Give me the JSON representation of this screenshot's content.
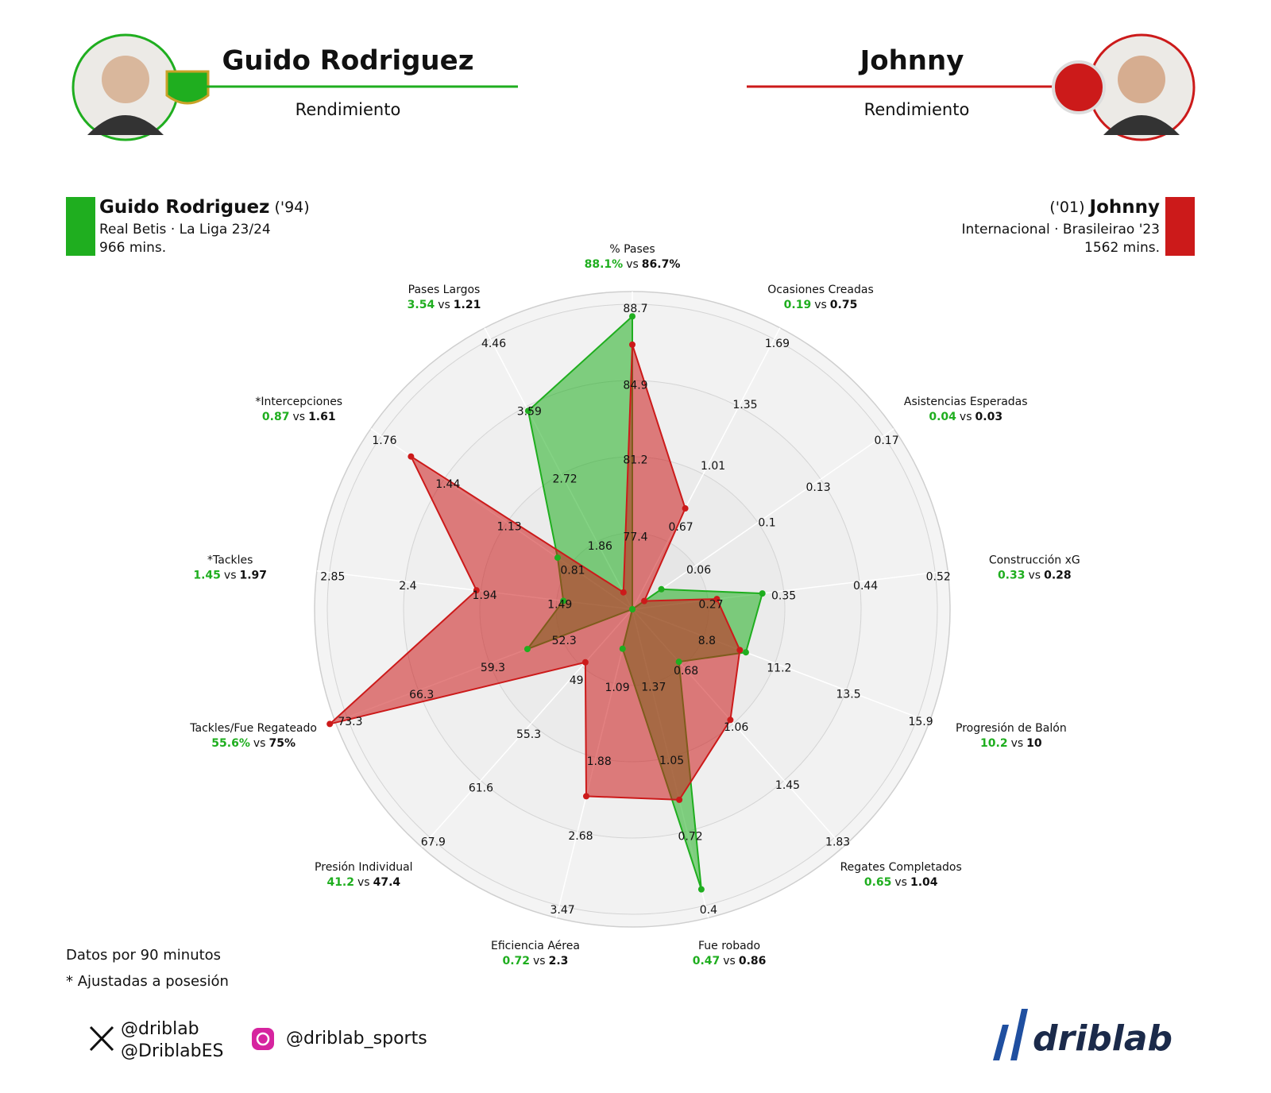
{
  "header": {
    "left": {
      "name": "Guido Rodriguez",
      "subtitle": "Rendimiento"
    },
    "right": {
      "name": "Johnny",
      "subtitle": "Rendimiento"
    }
  },
  "chart_data": {
    "type": "radar",
    "categories": [
      "% Pases",
      "Ocasiones Creadas",
      "Asistencias Esperadas",
      "Construcción xG",
      "Progresión de Balón",
      "Regates Completados",
      "Fue robado",
      "Eficiencia Aérea",
      "Presión Individual",
      "Tackles/Fue Regateado",
      "*Tackles",
      "*Intercepciones",
      "Pases Largos"
    ],
    "rlims": [
      [
        73.6,
        88.7
      ],
      [
        0.19,
        1.69
      ],
      [
        0.023,
        0.17
      ],
      [
        0.187,
        0.52
      ],
      [
        6.43,
        15.9
      ],
      [
        0.297,
        1.83
      ],
      [
        1.69,
        0.4
      ],
      [
        0.297,
        3.47
      ],
      [
        41.2,
        67.9
      ],
      [
        45.3,
        73.3
      ],
      [
        1.037,
        2.85
      ],
      [
        0.493,
        1.76
      ],
      [
        0.993,
        4.46
      ]
    ],
    "rticks": [
      [
        77.4,
        81.2,
        84.9,
        88.7
      ],
      [
        0.67,
        1.01,
        1.35,
        1.69
      ],
      [
        0.06,
        0.1,
        0.13,
        0.17
      ],
      [
        0.27,
        0.35,
        0.44,
        0.52
      ],
      [
        8.8,
        11.2,
        13.5,
        15.9
      ],
      [
        0.68,
        1.06,
        1.45,
        1.83
      ],
      [
        1.37,
        1.05,
        0.72,
        0.4
      ],
      [
        1.09,
        1.88,
        2.68,
        3.47
      ],
      [
        49,
        55.3,
        61.6,
        67.9
      ],
      [
        52.3,
        59.3,
        66.3,
        73.3
      ],
      [
        1.49,
        1.94,
        2.4,
        2.85
      ],
      [
        0.81,
        1.13,
        1.44,
        1.76
      ],
      [
        1.86,
        2.72,
        3.59,
        4.46
      ]
    ],
    "separator": "vs",
    "series": [
      {
        "name": "Guido Rodriguez",
        "birth": "('94)",
        "team": "Real Betis · La Liga 23/24",
        "minutes": "966 mins.",
        "color": "#1fae1f",
        "values": [
          88.1,
          0.19,
          0.04,
          0.33,
          10.2,
          0.65,
          0.47,
          0.72,
          41.2,
          55.6,
          1.45,
          0.87,
          3.54
        ],
        "value_labels": [
          "88.1%",
          "0.19",
          "0.04",
          "0.33",
          "10.2",
          "0.65",
          "0.47",
          "0.72",
          "41.2",
          "55.6%",
          "1.45",
          "0.87",
          "3.54"
        ]
      },
      {
        "name": "Johnny",
        "birth": "('01)",
        "team": "Internacional · Brasileirao '23",
        "minutes": "1562 mins.",
        "color": "#cc1a1a",
        "values": [
          86.7,
          0.75,
          0.03,
          0.28,
          10,
          1.04,
          0.86,
          2.3,
          47.4,
          75,
          1.97,
          1.61,
          1.21
        ],
        "value_labels": [
          "86.7%",
          "0.75",
          "0.03",
          "0.28",
          "10",
          "1.04",
          "0.86",
          "2.3",
          "47.4",
          "75%",
          "1.97",
          "1.61",
          "1.21"
        ]
      }
    ]
  },
  "notes": [
    "Datos por 90 minutos",
    "* Ajustadas a posesión"
  ],
  "footer": {
    "twitter": [
      "@driblab",
      "@DriblabES"
    ],
    "instagram": "@driblab_sports",
    "brand": "driblab"
  }
}
